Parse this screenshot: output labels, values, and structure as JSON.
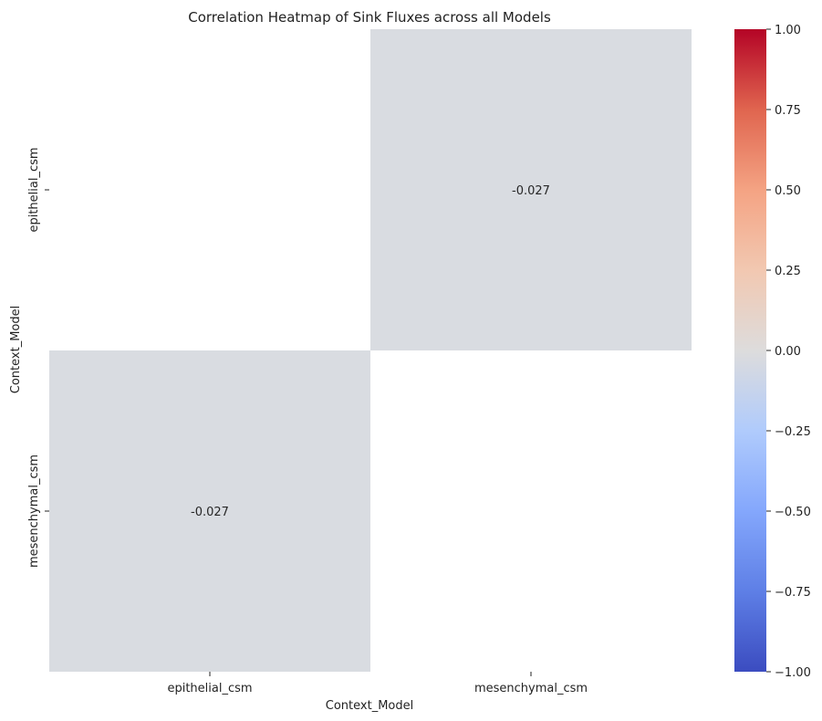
{
  "chart_data": {
    "type": "heatmap",
    "title": "Correlation Heatmap of Sink Fluxes across all Models",
    "xlabel": "Context_Model",
    "ylabel": "Context_Model",
    "x_categories": [
      "epithelial_csm",
      "mesenchymal_csm"
    ],
    "y_categories": [
      "epithelial_csm",
      "mesenchymal_csm"
    ],
    "cells": [
      {
        "row": 0,
        "col": 1,
        "value": -0.027,
        "label": "-0.027"
      },
      {
        "row": 1,
        "col": 0,
        "value": -0.027,
        "label": "-0.027"
      }
    ],
    "masked": "diagonal",
    "colorbar": {
      "colormap": "coolwarm",
      "vmin": -1.0,
      "vmax": 1.0,
      "ticks": [
        1.0,
        0.75,
        0.5,
        0.25,
        0.0,
        -0.25,
        -0.5,
        -0.75,
        -1.0
      ],
      "tick_labels": [
        "1.00",
        "0.75",
        "0.50",
        "0.25",
        "0.00",
        "−0.25",
        "−0.50",
        "−0.75",
        "−1.00"
      ]
    },
    "colors": {
      "cell_neutral": "#d9dce1",
      "text": "#262626"
    }
  }
}
